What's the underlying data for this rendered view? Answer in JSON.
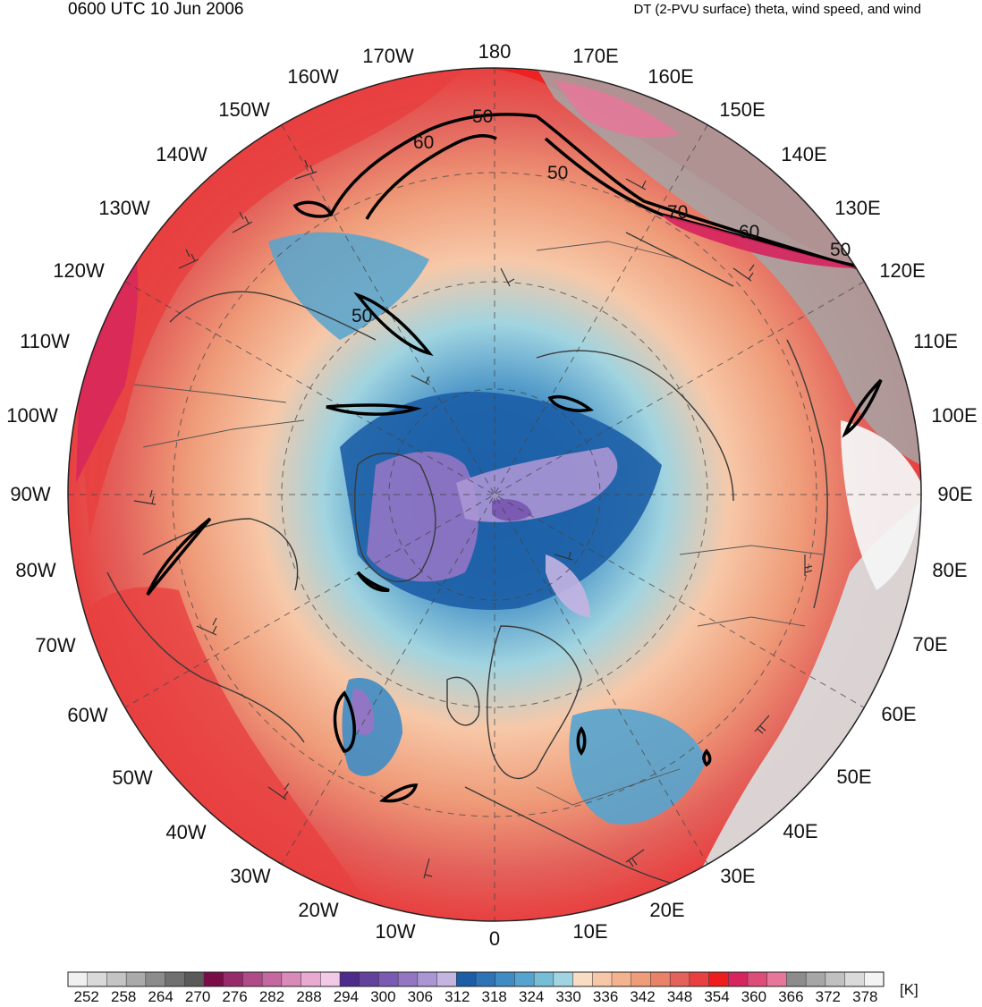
{
  "header": {
    "valid_time": "0600 UTC 10 Jun 2006",
    "field_title": "DT (2-PVU surface) theta, wind speed, and wind"
  },
  "map": {
    "projection": "north-polar-stereographic",
    "longitude_labels": [
      "180",
      "170E",
      "160E",
      "150E",
      "140E",
      "130E",
      "120E",
      "110E",
      "100E",
      "90E",
      "80E",
      "70E",
      "60E",
      "50E",
      "40E",
      "30E",
      "20E",
      "10E",
      "0",
      "10W",
      "20W",
      "30W",
      "40W",
      "50W",
      "60W",
      "70W",
      "80W",
      "90W",
      "100W",
      "110W",
      "120W",
      "130W",
      "140W",
      "150W",
      "160W",
      "170W"
    ],
    "jet_contour_labels": [
      "50",
      "60",
      "50",
      "70",
      "60",
      "50",
      "50"
    ]
  },
  "colorbar": {
    "units": "[K]",
    "tick_labels": [
      "252",
      "258",
      "264",
      "270",
      "276",
      "282",
      "288",
      "294",
      "300",
      "306",
      "312",
      "318",
      "324",
      "330",
      "336",
      "342",
      "348",
      "354",
      "360",
      "366",
      "372",
      "378"
    ],
    "colors": [
      "#f0f0f0",
      "#d9d9d9",
      "#c4c4c4",
      "#aaaaaa",
      "#8c8c8c",
      "#707070",
      "#5a5a5a",
      "#7a0c4a",
      "#962a6b",
      "#b04a88",
      "#c668a0",
      "#d98ab8",
      "#e8aad0",
      "#f2c9e6",
      "#4d2a8c",
      "#63429e",
      "#7a5ab2",
      "#9276c4",
      "#ab96d4",
      "#c4b4e2",
      "#1c5ea6",
      "#2e73b6",
      "#3f8cc4",
      "#55a4cf",
      "#76bdd6",
      "#a0d4e0",
      "#f8dcc4",
      "#f7c8a8",
      "#f4b38f",
      "#ef9c79",
      "#ea8268",
      "#e3625b",
      "#e84040",
      "#ee1c1c",
      "#d6245e",
      "#de4c7a",
      "#e6779a",
      "#8c8c8c",
      "#a6a6a6",
      "#c0c0c0",
      "#dadada",
      "#f4f4f4"
    ]
  }
}
